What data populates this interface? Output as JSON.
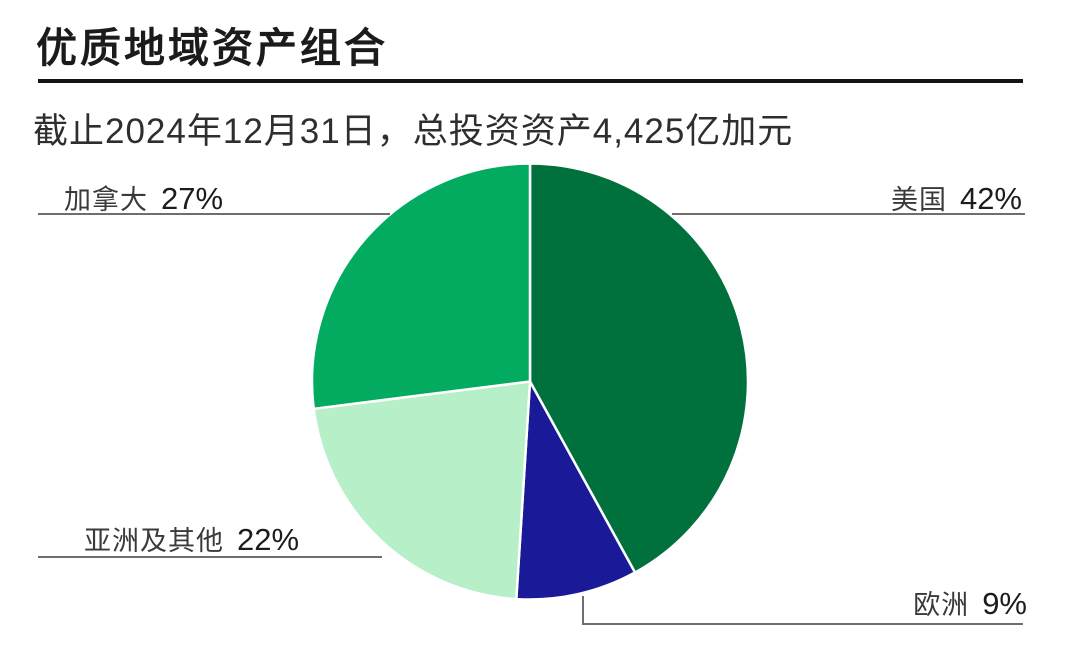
{
  "chart_data": {
    "type": "pie",
    "title": "优质地域资产组合",
    "subtitle": "截止2024年12月31日，总投资资产4,425亿加元",
    "unit": "%",
    "start_angle": "top",
    "direction": "clockwise",
    "slices": [
      {
        "id": "us",
        "label": "美国",
        "value": 42,
        "pct_label": "42%",
        "color": "#00713D"
      },
      {
        "id": "europe",
        "label": "欧洲",
        "value": 9,
        "pct_label": "9%",
        "color": "#1A1A99"
      },
      {
        "id": "asia",
        "label": "亚洲及其他",
        "value": 22,
        "pct_label": "22%",
        "color": "#B6EFC8"
      },
      {
        "id": "canada",
        "label": "加拿大",
        "value": 27,
        "pct_label": "27%",
        "color": "#02AB60"
      }
    ],
    "legend_position": "callout-labels-with-leader-lines",
    "colors": {
      "background": "#FFFFFF",
      "slice_separator": "#FFFFFF",
      "connector_line": "#6E6E6E",
      "title_rule": "#141414"
    }
  }
}
